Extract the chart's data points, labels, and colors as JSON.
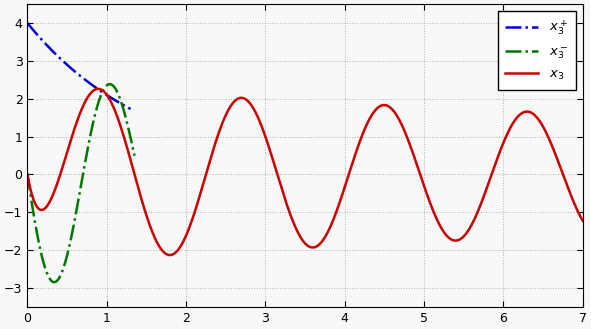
{
  "xlim": [
    0,
    7
  ],
  "ylim": [
    -3.5,
    4.5
  ],
  "xticks": [
    0,
    1,
    2,
    3,
    4,
    5,
    6,
    7
  ],
  "yticks": [
    -3,
    -2,
    -1,
    0,
    1,
    2,
    3,
    4
  ],
  "grid_color": "#b0b0b0",
  "background_color": "#f8f8f8",
  "line_blue_color": "#0000dd",
  "line_green_color": "#007700",
  "line_red_color": "#cc0000",
  "blue_tmax": 1.3,
  "green_tmax": 1.35,
  "figsize": [
    5.91,
    3.29
  ],
  "dpi": 100
}
